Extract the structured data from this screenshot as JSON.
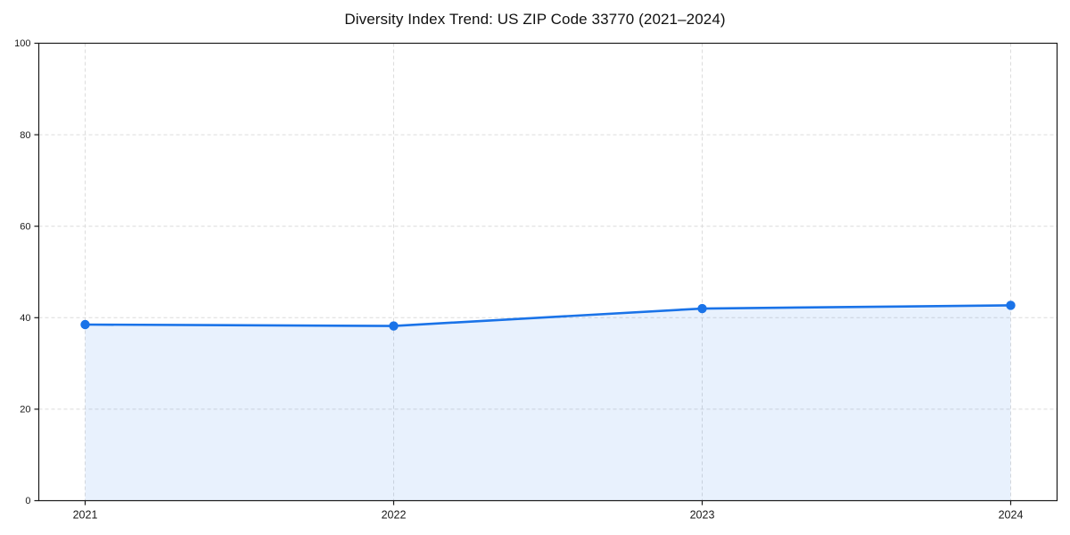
{
  "chart_data": {
    "type": "area",
    "title": "Diversity Index Trend: US ZIP Code 33770 (2021–2024)",
    "categories": [
      "2021",
      "2022",
      "2023",
      "2024"
    ],
    "series": [
      {
        "name": "Diversity Index",
        "values": [
          38.5,
          38.2,
          42.0,
          42.7
        ]
      }
    ],
    "xlabel": "",
    "ylabel": "",
    "ylim": [
      0,
      100
    ],
    "yticks": [
      0,
      20,
      40,
      60,
      80,
      100
    ],
    "grid": "dashed, horizontal and vertical",
    "legend_position": "none",
    "colors": {
      "line": "#1a73e8",
      "marker": "#1a73e8",
      "area_fill": "#1a73e8",
      "area_fill_opacity": 0.1,
      "gridline": "#dcdcdc",
      "spine": "#1a1a1a",
      "tick_label": "#1a1a1a",
      "background": "#ffffff"
    },
    "marker_style": "filled-circle"
  }
}
